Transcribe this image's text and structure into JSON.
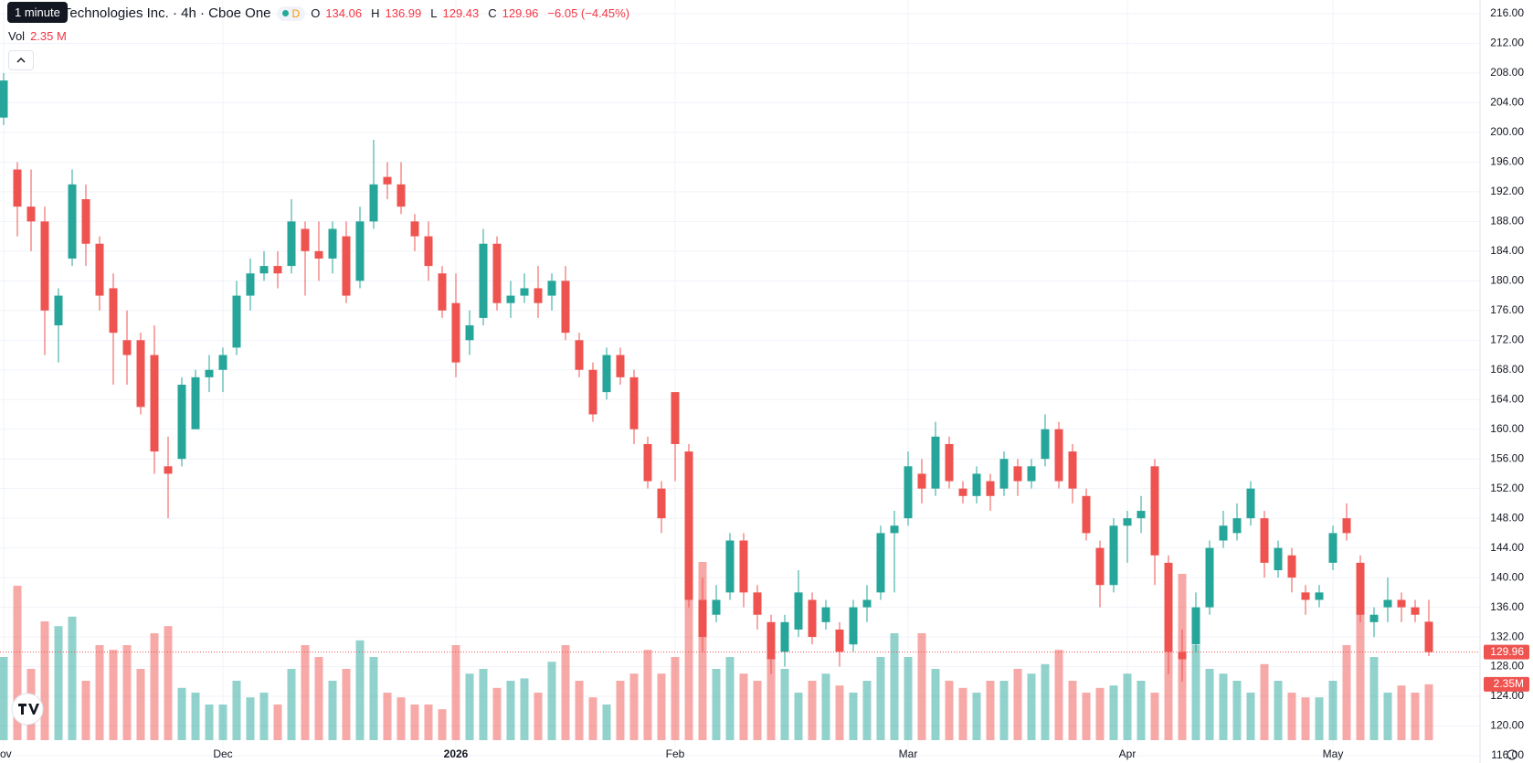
{
  "tooltip": "1 minute",
  "header": {
    "title": "r Technologies Inc. · 4h · Cboe One",
    "badge": "D",
    "o_label": "O",
    "h_label": "H",
    "l_label": "L",
    "c_label": "C",
    "change": "−6.05 (−4.45%)",
    "vol_label": "Vol",
    "vol_value": "2.35 M"
  },
  "chart_data": {
    "type": "candlestick",
    "categories": [
      "ov",
      null,
      null,
      null,
      null,
      null,
      null,
      null,
      null,
      null,
      null,
      null,
      null,
      null,
      null,
      null,
      "Dec",
      null,
      null,
      null,
      null,
      null,
      null,
      null,
      null,
      null,
      null,
      null,
      null,
      null,
      null,
      null,
      null,
      "2026",
      null,
      null,
      null,
      null,
      null,
      null,
      null,
      null,
      null,
      null,
      null,
      null,
      null,
      null,
      null,
      "Feb",
      null,
      null,
      null,
      null,
      null,
      null,
      null,
      null,
      null,
      null,
      null,
      null,
      null,
      null,
      null,
      null,
      "Mar",
      null,
      null,
      null,
      null,
      null,
      null,
      null,
      null,
      null,
      null,
      null,
      null,
      null,
      null,
      null,
      "Apr",
      null,
      null,
      null,
      null,
      null,
      null,
      null,
      null,
      null,
      null,
      null,
      null,
      null,
      null,
      "May",
      null,
      null,
      null,
      null,
      null,
      null,
      null
    ],
    "open": [
      202,
      195,
      190,
      188,
      174,
      183,
      191,
      185,
      179,
      172,
      172,
      170,
      155,
      156,
      160,
      167,
      168,
      171,
      178,
      181,
      182,
      182,
      187,
      184,
      183,
      186,
      180,
      188,
      194,
      193,
      188,
      186,
      181,
      177,
      172,
      175,
      185,
      177,
      178,
      179,
      178,
      180,
      172,
      168,
      165,
      170,
      167,
      158,
      152,
      165,
      157,
      137,
      135,
      138,
      145,
      138,
      134,
      130,
      133,
      137,
      134,
      133,
      131,
      136,
      138,
      146,
      148,
      154,
      152,
      158,
      152,
      151,
      153,
      152,
      155,
      153,
      156,
      160,
      157,
      151,
      144,
      139,
      147,
      148,
      155,
      142,
      130,
      131,
      136,
      145,
      146,
      148,
      148,
      141,
      143,
      138,
      137,
      142,
      148,
      142,
      134,
      136,
      137,
      136,
      134.06
    ],
    "high": [
      208,
      196,
      195,
      190,
      179,
      195,
      193,
      186,
      181,
      176,
      173,
      174,
      159,
      167,
      168,
      170,
      171,
      180,
      183,
      184,
      184,
      191,
      188,
      188,
      188,
      188,
      190,
      199,
      196,
      196,
      189,
      188,
      182,
      181,
      176,
      187,
      186,
      180,
      181,
      182,
      181,
      182,
      173,
      169,
      171,
      171,
      168,
      159,
      153,
      165,
      158,
      140,
      139,
      146,
      146,
      139,
      135,
      135,
      141,
      138,
      137,
      134,
      137,
      139,
      147,
      149,
      157,
      156,
      161,
      159,
      153,
      155,
      154,
      157,
      156,
      156,
      162,
      161,
      158,
      152,
      145,
      148,
      149,
      151,
      156,
      143,
      133,
      138,
      145,
      149,
      150,
      153,
      149,
      145,
      144,
      139,
      139,
      147,
      150,
      143,
      136,
      140,
      138,
      137,
      136.99
    ],
    "low": [
      201,
      186,
      184,
      170,
      169,
      182,
      182,
      176,
      166,
      166,
      162,
      154,
      148,
      155,
      160,
      165,
      165,
      170,
      176,
      180,
      179,
      181,
      178,
      180,
      181,
      177,
      179,
      187,
      191,
      189,
      184,
      180,
      175,
      167,
      170,
      174,
      176,
      175,
      177,
      175,
      176,
      172,
      167,
      161,
      164,
      166,
      158,
      152,
      146,
      153,
      136,
      130,
      134,
      137,
      136,
      133,
      127,
      128,
      132,
      131,
      133,
      128,
      130,
      134,
      137,
      138,
      147,
      150,
      151,
      152,
      150,
      150,
      149,
      151,
      151,
      152,
      155,
      152,
      150,
      145,
      136,
      138,
      142,
      146,
      139,
      127,
      126,
      130,
      135,
      144,
      145,
      147,
      140,
      140,
      138,
      135,
      136,
      141,
      145,
      134,
      132,
      134,
      134,
      134,
      129.43
    ],
    "close": [
      207,
      190,
      188,
      176,
      178,
      193,
      185,
      178,
      173,
      170,
      163,
      157,
      154,
      166,
      167,
      168,
      170,
      178,
      181,
      182,
      181,
      188,
      184,
      183,
      187,
      178,
      188,
      193,
      193,
      190,
      186,
      182,
      176,
      169,
      174,
      185,
      177,
      178,
      179,
      177,
      180,
      173,
      168,
      162,
      170,
      167,
      160,
      153,
      148,
      158,
      137,
      132,
      137,
      145,
      138,
      135,
      129,
      134,
      138,
      132,
      136,
      130,
      136,
      137,
      146,
      147,
      155,
      152,
      159,
      153,
      151,
      154,
      151,
      156,
      153,
      155,
      160,
      153,
      152,
      146,
      139,
      147,
      148,
      149,
      143,
      130,
      129,
      136,
      144,
      147,
      148,
      152,
      142,
      144,
      140,
      137,
      138,
      146,
      146,
      135,
      135,
      137,
      136,
      135,
      129.96
    ],
    "volume": [
      3.5,
      6.5,
      3.0,
      5.0,
      4.8,
      5.2,
      2.5,
      4.0,
      3.8,
      4.0,
      3.0,
      4.5,
      4.8,
      2.2,
      2.0,
      1.5,
      1.5,
      2.5,
      1.8,
      2.0,
      1.5,
      3.0,
      4.0,
      3.5,
      2.5,
      3.0,
      4.2,
      3.5,
      2.0,
      1.8,
      1.5,
      1.5,
      1.3,
      4.0,
      2.8,
      3.0,
      2.2,
      2.5,
      2.6,
      2.0,
      3.3,
      4.0,
      2.5,
      1.8,
      1.5,
      2.5,
      2.8,
      3.8,
      2.8,
      3.5,
      7.5,
      7.5,
      3.0,
      3.5,
      2.8,
      2.5,
      3.5,
      3.0,
      2.0,
      2.5,
      2.8,
      2.3,
      2.0,
      2.5,
      3.5,
      4.5,
      3.5,
      4.5,
      3.0,
      2.5,
      2.2,
      2.0,
      2.5,
      2.5,
      3.0,
      2.8,
      3.2,
      3.8,
      2.5,
      2.0,
      2.2,
      2.3,
      2.8,
      2.5,
      2.0,
      6.5,
      7.0,
      4.0,
      3.0,
      2.8,
      2.5,
      2.0,
      3.2,
      2.5,
      2.0,
      1.8,
      1.8,
      2.5,
      4.0,
      5.5,
      3.5,
      2.0,
      2.3,
      2.0,
      2.35
    ],
    "last_volume_label": "2.35M",
    "volume_lim": [
      0,
      30
    ],
    "up_color": "#26a69a",
    "down_color": "#ef5350",
    "ylim": [
      116,
      216
    ],
    "yticks": [
      {
        "value": 116,
        "label": "116.00"
      },
      {
        "value": 120,
        "label": "120.00"
      },
      {
        "value": 124,
        "label": "124.00"
      },
      {
        "value": 128,
        "label": "128.00"
      },
      {
        "value": 132,
        "label": "132.00"
      },
      {
        "value": 136,
        "label": "136.00"
      },
      {
        "value": 140,
        "label": "140.00"
      },
      {
        "value": 144,
        "label": "144.00"
      },
      {
        "value": 148,
        "label": "148.00"
      },
      {
        "value": 152,
        "label": "152.00"
      },
      {
        "value": 156,
        "label": "156.00"
      },
      {
        "value": 160,
        "label": "160.00"
      },
      {
        "value": 164,
        "label": "164.00"
      },
      {
        "value": 168,
        "label": "168.00"
      },
      {
        "value": 172,
        "label": "172.00"
      },
      {
        "value": 176,
        "label": "176.00"
      },
      {
        "value": 180,
        "label": "180.00"
      },
      {
        "value": 184,
        "label": "184.00"
      },
      {
        "value": 188,
        "label": "188.00"
      },
      {
        "value": 192,
        "label": "192.00"
      },
      {
        "value": 196,
        "label": "196.00"
      },
      {
        "value": 200,
        "label": "200.00"
      },
      {
        "value": 204,
        "label": "204.00"
      },
      {
        "value": 208,
        "label": "208.00"
      },
      {
        "value": 212,
        "label": "212.00"
      },
      {
        "value": 216,
        "label": "216.00"
      }
    ],
    "grid": true
  }
}
